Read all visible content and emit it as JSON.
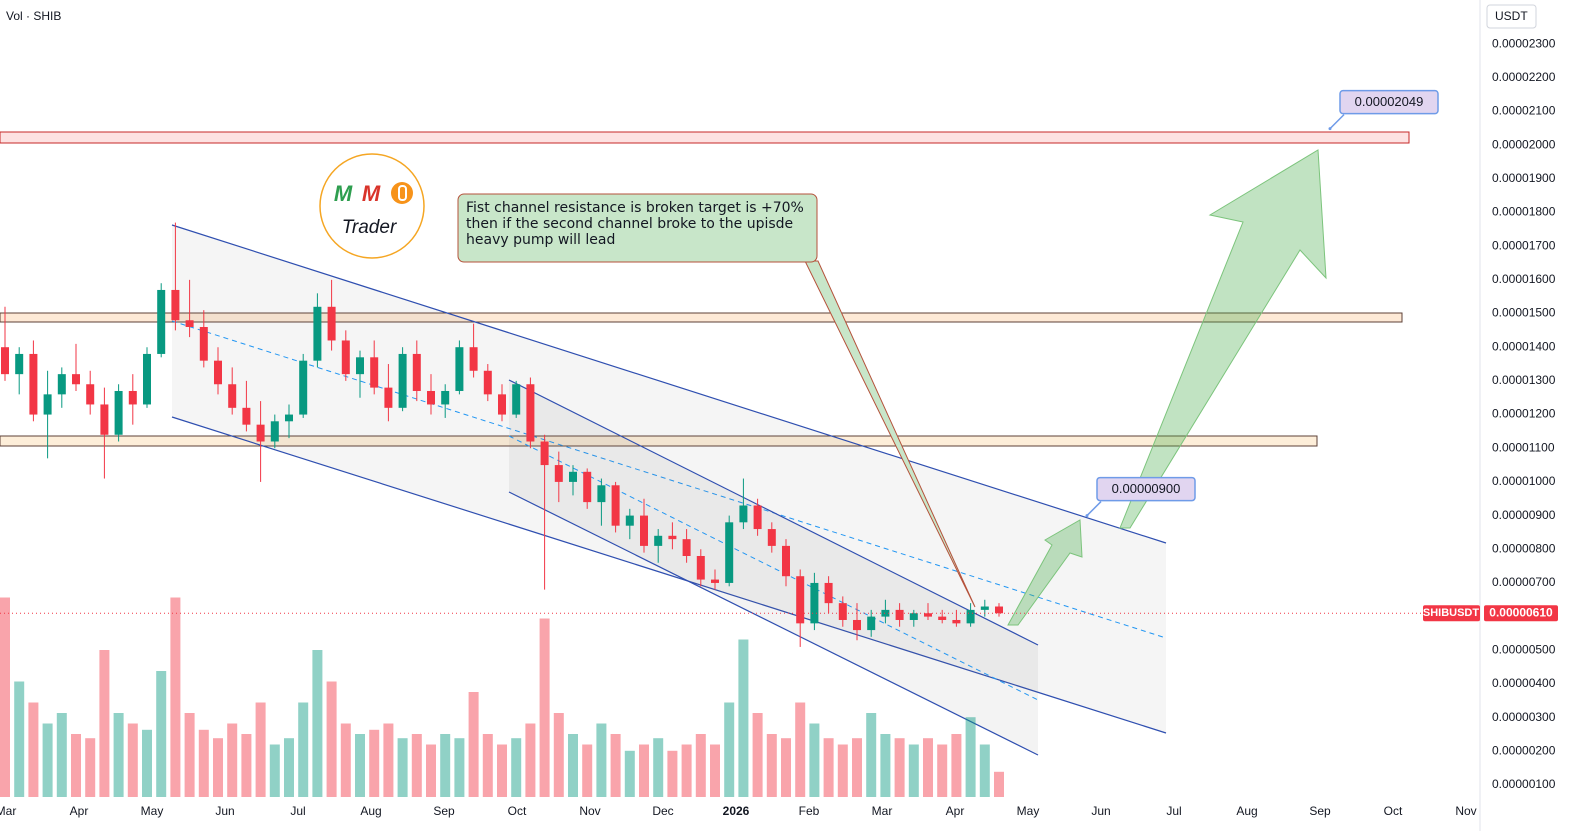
{
  "header": {
    "indicator": "Vol · SHIB",
    "currency": "USDT"
  },
  "chart_data": {
    "type": "candlestick",
    "symbol": "SHIBUSDT",
    "xticks": [
      "Mar",
      "Apr",
      "May",
      "Jun",
      "Jul",
      "Aug",
      "Sep",
      "Oct",
      "Nov",
      "Dec",
      "2026",
      "Feb",
      "Mar",
      "Apr",
      "May",
      "Jun",
      "Jul",
      "Aug",
      "Sep",
      "Oct",
      "Nov"
    ],
    "open": [
      1.4e-05,
      1.32e-05,
      1.38e-05,
      1.2e-05,
      1.26e-05,
      1.32e-05,
      1.29e-05,
      1.23e-05,
      1.14e-05,
      1.27e-05,
      1.23e-05,
      1.38e-05,
      1.57e-05,
      1.48e-05,
      1.46e-05,
      1.36e-05,
      1.29e-05,
      1.22e-05,
      1.17e-05,
      1.12e-05,
      1.18e-05,
      1.2e-05,
      1.36e-05,
      1.52e-05,
      1.42e-05,
      1.32e-05,
      1.37e-05,
      1.28e-05,
      1.22e-05,
      1.38e-05,
      1.27e-05,
      1.23e-05,
      1.27e-05,
      1.4e-05,
      1.33e-05,
      1.26e-05,
      1.2e-05,
      1.29e-05,
      1.12e-05,
      1.05e-05,
      1e-05,
      1.03e-05,
      9.4e-06,
      9.9e-06,
      8.7e-06,
      9e-06,
      8.1e-06,
      8.4e-06,
      8.3e-06,
      7.8e-06,
      7.1e-06,
      7e-06,
      8.8e-06,
      9.3e-06,
      8.6e-06,
      8.1e-06,
      7.2e-06,
      5.8e-06,
      7e-06,
      6.4e-06,
      5.9e-06,
      5.6e-06,
      6e-06,
      6.2e-06,
      5.9e-06,
      6.1e-06,
      6e-06,
      5.9e-06,
      5.8e-06,
      6.2e-06,
      6.3e-06
    ],
    "high": [
      1.52e-05,
      1.4e-05,
      1.42e-05,
      1.33e-05,
      1.34e-05,
      1.41e-05,
      1.33e-05,
      1.28e-05,
      1.29e-05,
      1.32e-05,
      1.4e-05,
      1.59e-05,
      1.77e-05,
      1.6e-05,
      1.51e-05,
      1.4e-05,
      1.34e-05,
      1.3e-05,
      1.24e-05,
      1.2e-05,
      1.23e-05,
      1.38e-05,
      1.56e-05,
      1.6e-05,
      1.45e-05,
      1.39e-05,
      1.42e-05,
      1.35e-05,
      1.4e-05,
      1.42e-05,
      1.32e-05,
      1.29e-05,
      1.42e-05,
      1.47e-05,
      1.35e-05,
      1.29e-05,
      1.3e-05,
      1.31e-05,
      1.14e-05,
      1.09e-05,
      1.05e-05,
      1.04e-05,
      1.01e-05,
      1e-05,
      9.2e-06,
      9.5e-06,
      8.6e-06,
      8.8e-06,
      8.6e-06,
      8e-06,
      7.4e-06,
      9e-06,
      1.01e-05,
      9.5e-06,
      8.8e-06,
      8.3e-06,
      7.4e-06,
      7.3e-06,
      7.2e-06,
      6.6e-06,
      6.4e-06,
      6.2e-06,
      6.5e-06,
      6.4e-06,
      6.2e-06,
      6.4e-06,
      6.2e-06,
      6.2e-06,
      6.4e-06,
      6.5e-06,
      6.4e-06
    ],
    "low": [
      1.3e-05,
      1.26e-05,
      1.18e-05,
      1.07e-05,
      1.22e-05,
      1.27e-05,
      1.2e-05,
      1.01e-05,
      1.12e-05,
      1.17e-05,
      1.22e-05,
      1.37e-05,
      1.45e-05,
      1.43e-05,
      1.34e-05,
      1.26e-05,
      1.2e-05,
      1.15e-05,
      1e-05,
      1.1e-05,
      1.13e-05,
      1.19e-05,
      1.34e-05,
      1.39e-05,
      1.3e-05,
      1.25e-05,
      1.26e-05,
      1.18e-05,
      1.21e-05,
      1.24e-05,
      1.2e-05,
      1.19e-05,
      1.26e-05,
      1.31e-05,
      1.24e-05,
      1.18e-05,
      1.19e-05,
      1.1e-05,
      6.8e-06,
      9.4e-06,
      9.6e-06,
      9.2e-06,
      8.7e-06,
      8.5e-06,
      8.3e-06,
      7.9e-06,
      7.6e-06,
      8e-06,
      7.6e-06,
      6.9e-06,
      6.8e-06,
      6.9e-06,
      8.6e-06,
      8.4e-06,
      7.9e-06,
      6.9e-06,
      5.1e-06,
      5.6e-06,
      6.1e-06,
      5.7e-06,
      5.3e-06,
      5.4e-06,
      5.8e-06,
      5.7e-06,
      5.7e-06,
      5.9e-06,
      5.8e-06,
      5.7e-06,
      5.7e-06,
      6e-06,
      6e-06
    ],
    "close": [
      1.32e-05,
      1.38e-05,
      1.2e-05,
      1.26e-05,
      1.32e-05,
      1.29e-05,
      1.23e-05,
      1.14e-05,
      1.27e-05,
      1.23e-05,
      1.38e-05,
      1.57e-05,
      1.48e-05,
      1.46e-05,
      1.36e-05,
      1.29e-05,
      1.22e-05,
      1.17e-05,
      1.12e-05,
      1.18e-05,
      1.2e-05,
      1.36e-05,
      1.52e-05,
      1.42e-05,
      1.32e-05,
      1.37e-05,
      1.28e-05,
      1.22e-05,
      1.38e-05,
      1.27e-05,
      1.23e-05,
      1.27e-05,
      1.4e-05,
      1.33e-05,
      1.26e-05,
      1.2e-05,
      1.29e-05,
      1.12e-05,
      1.05e-05,
      1e-05,
      1.03e-05,
      9.4e-06,
      9.9e-06,
      8.7e-06,
      9e-06,
      8.1e-06,
      8.4e-06,
      8.3e-06,
      7.8e-06,
      7.1e-06,
      7e-06,
      8.8e-06,
      9.3e-06,
      8.6e-06,
      8.1e-06,
      7.2e-06,
      5.8e-06,
      7e-06,
      6.4e-06,
      5.9e-06,
      5.6e-06,
      6e-06,
      6.2e-06,
      5.9e-06,
      6.1e-06,
      6e-06,
      5.9e-06,
      5.8e-06,
      6.2e-06,
      6.3e-06,
      6.1e-06
    ],
    "volume": [
      95,
      55,
      45,
      35,
      40,
      30,
      28,
      70,
      40,
      35,
      32,
      60,
      95,
      40,
      32,
      28,
      35,
      30,
      45,
      25,
      28,
      45,
      70,
      55,
      35,
      30,
      32,
      35,
      28,
      30,
      25,
      30,
      28,
      50,
      30,
      25,
      28,
      35,
      85,
      40,
      30,
      25,
      35,
      30,
      22,
      25,
      28,
      22,
      25,
      30,
      25,
      45,
      75,
      40,
      30,
      28,
      45,
      35,
      28,
      25,
      28,
      40,
      30,
      28,
      25,
      28,
      25,
      30,
      38,
      25,
      12
    ],
    "volume_ylim": [
      0,
      100
    ],
    "up_color": "#089981",
    "down_color": "#f23645",
    "ylim": [
      7.03e-07,
      2.431e-05
    ],
    "yticks": [
      {
        "value": 1e-06,
        "label": "0.00000100"
      },
      {
        "value": 2e-06,
        "label": "0.00000200"
      },
      {
        "value": 3e-06,
        "label": "0.00000300"
      },
      {
        "value": 4e-06,
        "label": "0.00000400"
      },
      {
        "value": 5e-06,
        "label": "0.00000500"
      },
      {
        "value": 6e-06,
        "label": "0.00000600"
      },
      {
        "value": 7e-06,
        "label": "0.00000700"
      },
      {
        "value": 8e-06,
        "label": "0.00000800"
      },
      {
        "value": 9e-06,
        "label": "0.00000900"
      },
      {
        "value": 1e-05,
        "label": "0.00001000"
      },
      {
        "value": 1.1e-05,
        "label": "0.00001100"
      },
      {
        "value": 1.2e-05,
        "label": "0.00001200"
      },
      {
        "value": 1.3e-05,
        "label": "0.00001300"
      },
      {
        "value": 1.4e-05,
        "label": "0.00001400"
      },
      {
        "value": 1.5e-05,
        "label": "0.00001500"
      },
      {
        "value": 1.6e-05,
        "label": "0.00001600"
      },
      {
        "value": 1.7e-05,
        "label": "0.00001700"
      },
      {
        "value": 1.8e-05,
        "label": "0.00001800"
      },
      {
        "value": 1.9e-05,
        "label": "0.00001900"
      },
      {
        "value": 2e-05,
        "label": "0.00002000"
      },
      {
        "value": 2.1e-05,
        "label": "0.00002100"
      },
      {
        "value": 2.2e-05,
        "label": "0.00002200"
      },
      {
        "value": 2.3e-05,
        "label": "0.00002300"
      }
    ],
    "last_price": {
      "value": 6.1e-06,
      "label": "0.00000610"
    },
    "targets": [
      {
        "value": 2.049e-05,
        "label": "0.00002049"
      },
      {
        "value": 9e-06,
        "label": "0.00000900"
      }
    ],
    "note": "Fist channel resistance is broken target is +70% then if the second channel broke to the upisde heavy pump will lead",
    "logo": {
      "letters": [
        "M",
        "M"
      ],
      "text": "Trader"
    }
  }
}
